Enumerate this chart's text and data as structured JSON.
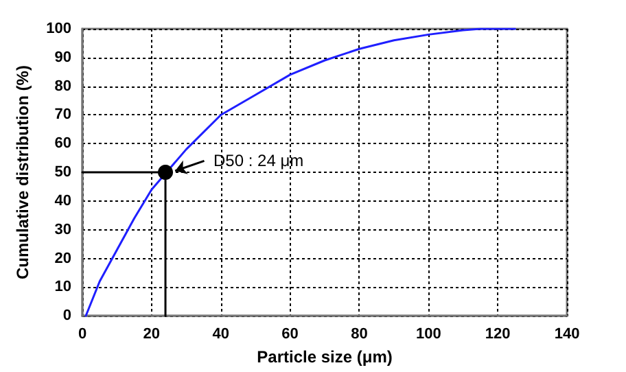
{
  "chart_data": {
    "type": "line",
    "xlabel": "Particle size (μm)",
    "ylabel": "Cumulative distribution (%)",
    "xlim": [
      0,
      140
    ],
    "ylim": [
      0,
      100
    ],
    "xticks": [
      0,
      20,
      40,
      60,
      80,
      100,
      120,
      140
    ],
    "yticks": [
      0,
      10,
      20,
      30,
      40,
      50,
      60,
      70,
      80,
      90,
      100
    ],
    "grid": true,
    "marker": "none",
    "line_style": "solid",
    "series": [
      {
        "color": "#1f1fff",
        "x": [
          1,
          5,
          10,
          15,
          20,
          30,
          40,
          50,
          60,
          70,
          80,
          90,
          100,
          110,
          115,
          125
        ],
        "values": [
          0,
          12,
          23,
          34,
          44,
          58,
          70,
          77,
          84,
          89,
          93,
          96,
          98,
          99.5,
          100,
          100
        ]
      },
      {
        "color": "#000000",
        "x": [
          0,
          24,
          24
        ],
        "values": [
          50,
          50,
          0
        ]
      },
      {
        "type": "scatter",
        "marker": "circle",
        "color": "#000000",
        "x": [
          24
        ],
        "values": [
          50
        ]
      }
    ],
    "annotations": [
      {
        "text": "D50 : 24 μm",
        "x": 24,
        "y": 50
      }
    ]
  }
}
